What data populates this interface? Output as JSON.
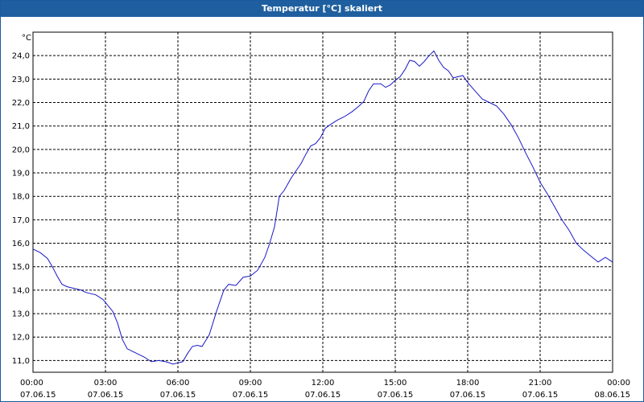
{
  "window": {
    "title": "Temperatur [°C] skaliert"
  },
  "chart_data": {
    "type": "line",
    "title": "Temperatur [°C] skaliert",
    "ylabel": "°C",
    "xlabel": "",
    "ylim": [
      10.5,
      25.0
    ],
    "xlim": [
      0,
      24
    ],
    "grid": true,
    "line_color": "#1818c8",
    "y_ticks": [
      {
        "value": 11,
        "label": "11,0"
      },
      {
        "value": 12,
        "label": "12,0"
      },
      {
        "value": 13,
        "label": "13,0"
      },
      {
        "value": 14,
        "label": "14,0"
      },
      {
        "value": 15,
        "label": "15,0"
      },
      {
        "value": 16,
        "label": "16,0"
      },
      {
        "value": 17,
        "label": "17,0"
      },
      {
        "value": 18,
        "label": "18,0"
      },
      {
        "value": 19,
        "label": "19,0"
      },
      {
        "value": 20,
        "label": "20,0"
      },
      {
        "value": 21,
        "label": "21,0"
      },
      {
        "value": 22,
        "label": "22,0"
      },
      {
        "value": 23,
        "label": "23,0"
      },
      {
        "value": 24,
        "label": "24,0"
      }
    ],
    "x_ticks": [
      {
        "value": 0,
        "time": "00:00",
        "date": "07.06.15"
      },
      {
        "value": 3,
        "time": "03:00",
        "date": "07.06.15"
      },
      {
        "value": 6,
        "time": "06:00",
        "date": "07.06.15"
      },
      {
        "value": 9,
        "time": "09:00",
        "date": "07.06.15"
      },
      {
        "value": 12,
        "time": "12:00",
        "date": "07.06.15"
      },
      {
        "value": 15,
        "time": "15:00",
        "date": "07.06.15"
      },
      {
        "value": 18,
        "time": "18:00",
        "date": "07.06.15"
      },
      {
        "value": 21,
        "time": "21:00",
        "date": "07.06.15"
      },
      {
        "value": 24,
        "time": "00:00",
        "date": "08.06.15"
      }
    ],
    "series": [
      {
        "x": [
          0,
          0.3,
          0.6,
          0.8,
          1.0,
          1.2,
          1.4,
          1.6,
          2.0,
          2.2,
          2.6,
          2.9,
          3.1,
          3.3,
          3.5,
          3.7,
          3.9,
          4.2,
          4.6,
          4.9,
          5.2,
          5.5,
          5.8,
          6.0,
          6.2,
          6.4,
          6.6,
          6.8,
          7.0,
          7.3,
          7.6,
          7.9,
          8.1,
          8.4,
          8.7,
          9.0,
          9.3,
          9.6,
          9.8,
          10.0,
          10.2,
          10.4,
          10.7,
          10.9,
          11.1,
          11.3,
          11.5,
          11.7,
          11.9,
          12.1,
          12.3,
          12.6,
          12.9,
          13.2,
          13.5,
          13.7,
          13.9,
          14.1,
          14.4,
          14.6,
          14.8,
          15.0,
          15.2,
          15.4,
          15.6,
          15.8,
          16.0,
          16.2,
          16.4,
          16.6,
          16.8,
          17.0,
          17.2,
          17.4,
          17.6,
          17.8,
          18.0,
          18.3,
          18.6,
          18.9,
          19.2,
          19.5,
          19.8,
          20.1,
          20.4,
          20.7,
          21.0,
          21.3,
          21.6,
          21.9,
          22.2,
          22.5,
          22.8,
          23.1,
          23.4,
          23.7,
          24.0
        ],
        "values": [
          15.75,
          15.6,
          15.35,
          15.0,
          14.6,
          14.25,
          14.15,
          14.1,
          14.0,
          13.9,
          13.8,
          13.6,
          13.35,
          13.1,
          12.6,
          11.9,
          11.5,
          11.35,
          11.15,
          10.95,
          11.0,
          10.95,
          10.85,
          10.9,
          10.95,
          11.3,
          11.6,
          11.65,
          11.6,
          12.1,
          13.1,
          14.0,
          14.25,
          14.2,
          14.55,
          14.6,
          14.85,
          15.4,
          16.0,
          16.7,
          18.0,
          18.25,
          18.8,
          19.1,
          19.4,
          19.8,
          20.15,
          20.25,
          20.5,
          20.9,
          21.05,
          21.25,
          21.4,
          21.6,
          21.85,
          22.05,
          22.5,
          22.8,
          22.8,
          22.65,
          22.75,
          22.95,
          23.1,
          23.4,
          23.8,
          23.75,
          23.55,
          23.75,
          24.0,
          24.2,
          23.8,
          23.5,
          23.35,
          23.05,
          23.1,
          23.15,
          22.85,
          22.5,
          22.15,
          22.0,
          21.85,
          21.5,
          21.05,
          20.5,
          19.85,
          19.25,
          18.6,
          18.1,
          17.55,
          17.0,
          16.55,
          16.0,
          15.7,
          15.45,
          15.2,
          15.4,
          15.2
        ]
      }
    ]
  }
}
